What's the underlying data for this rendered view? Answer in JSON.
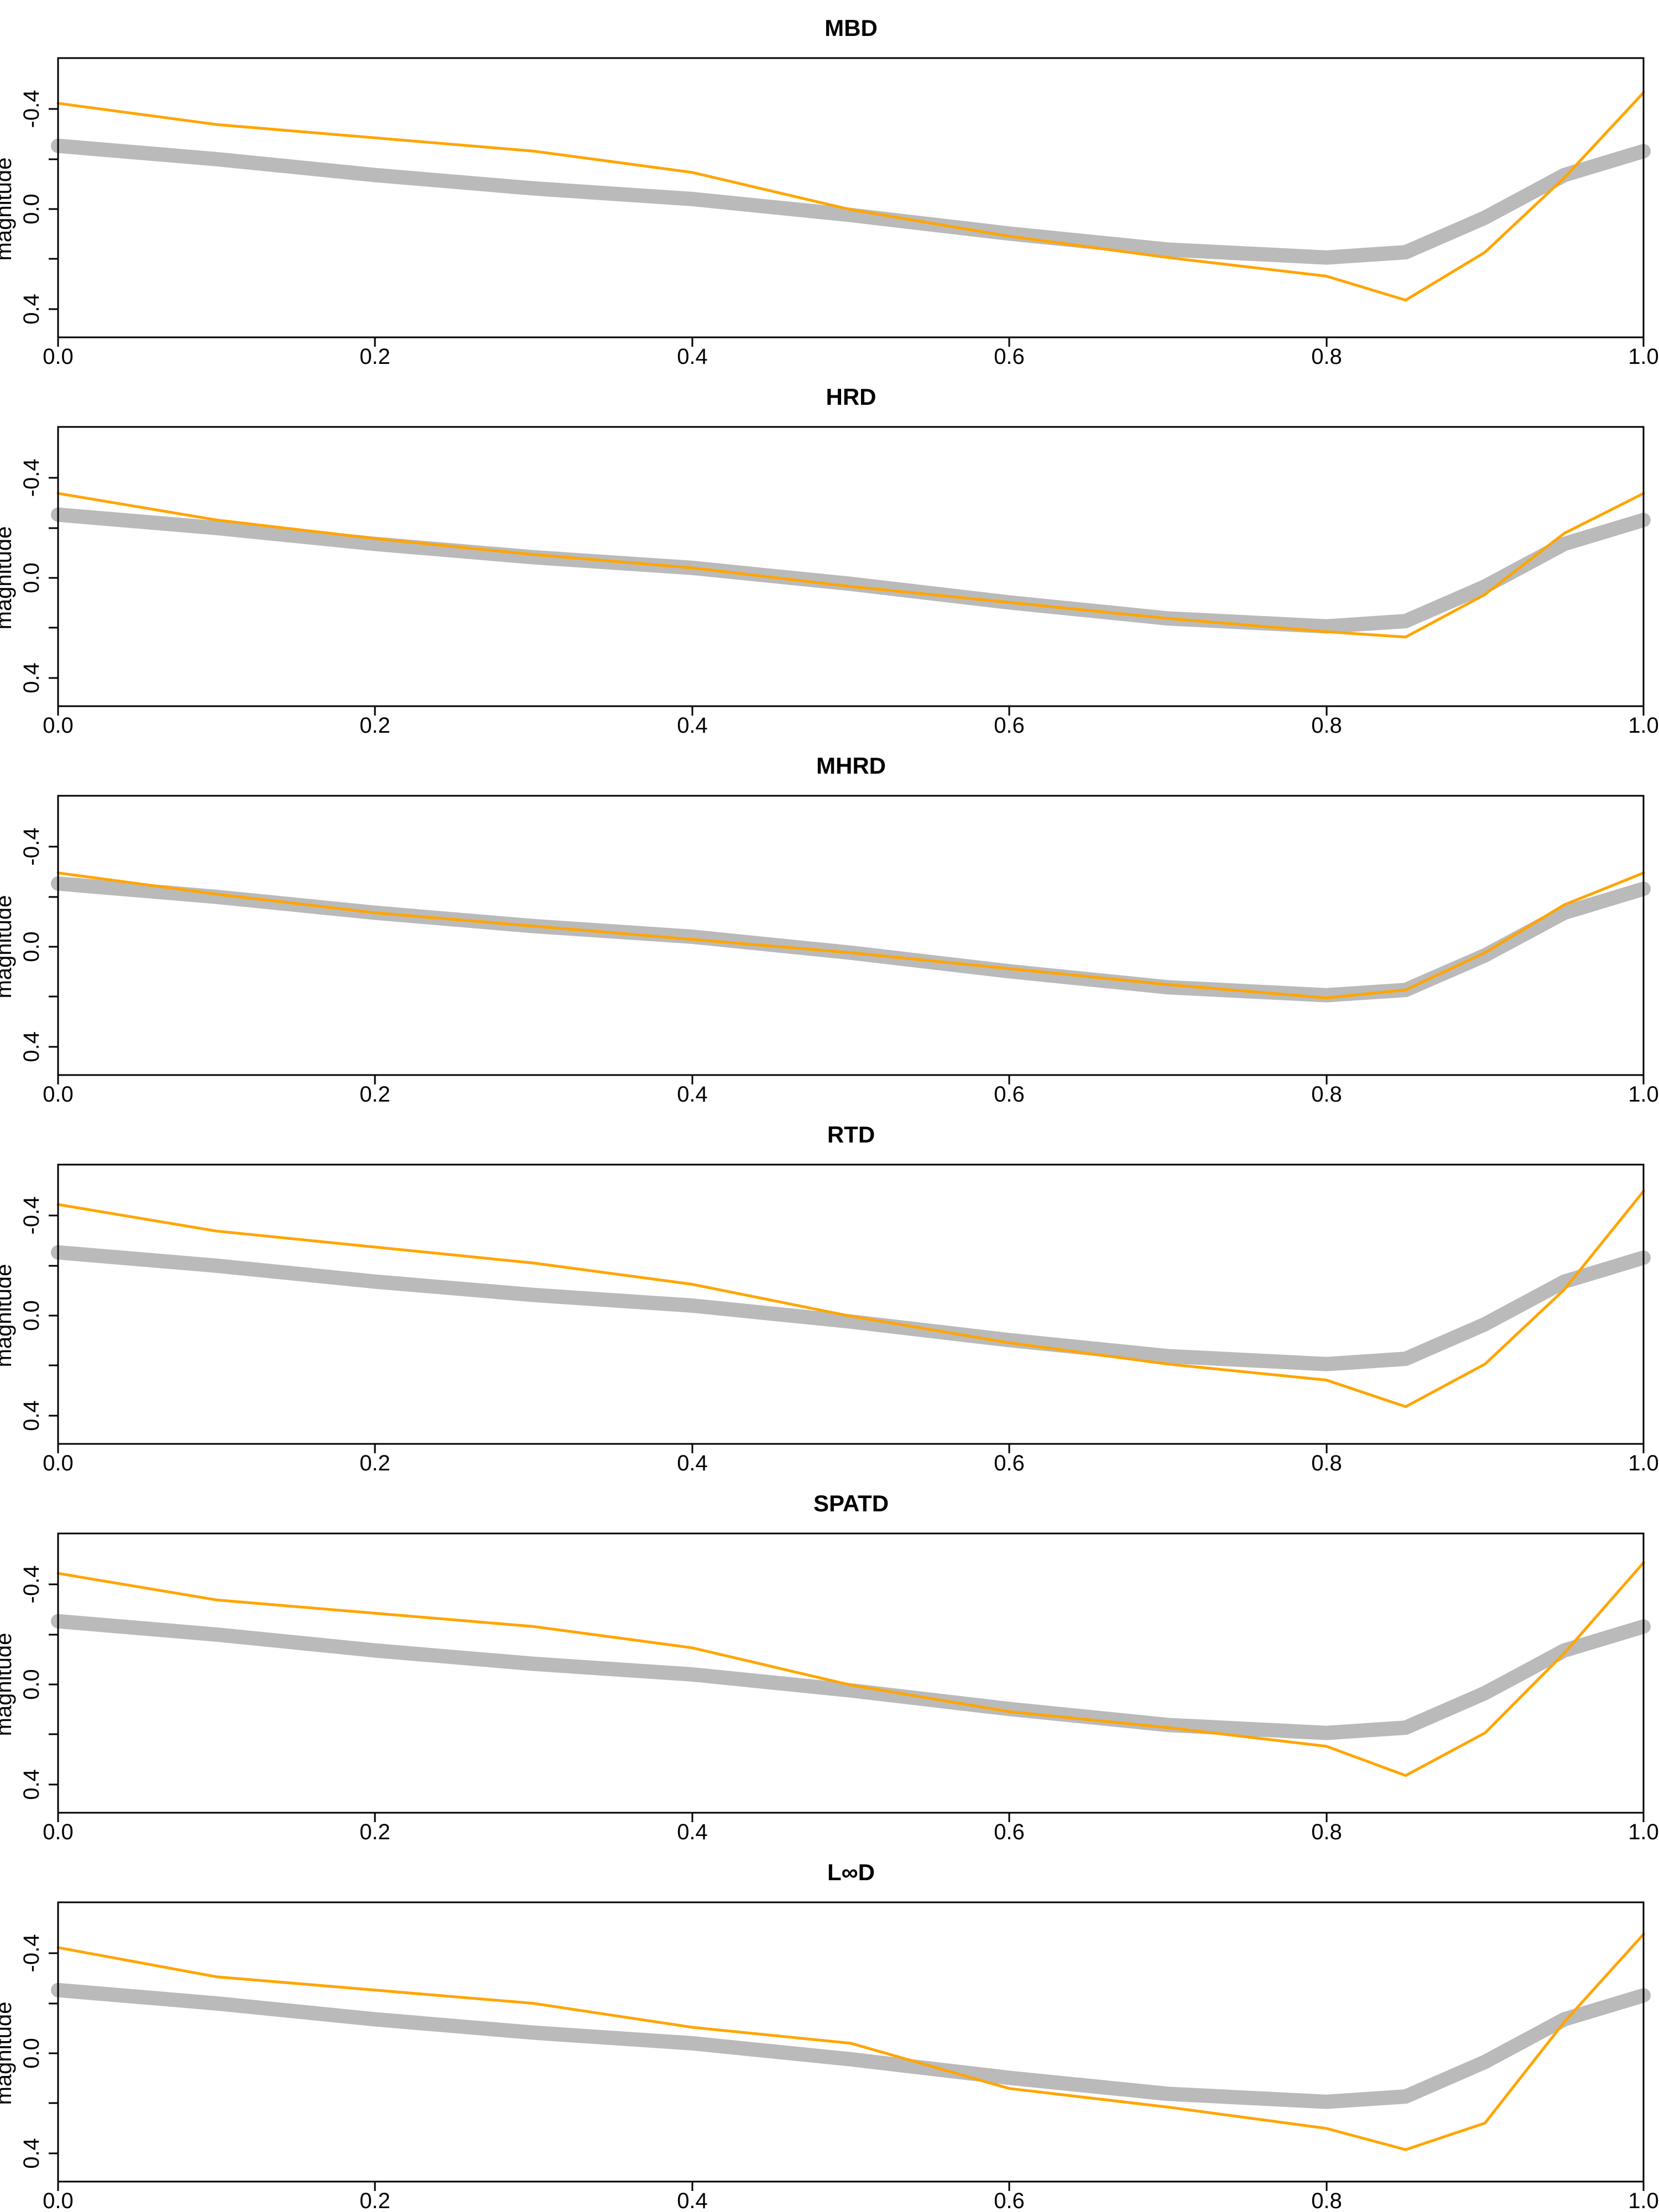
{
  "chart_data": [
    {
      "type": "line",
      "title": "MBD",
      "xlabel": "",
      "ylabel": "magnitude",
      "x_ticks": [
        "0.0",
        "0.2",
        "0.4",
        "0.6",
        "0.8",
        "1.0"
      ],
      "y_ticks": [
        "-0.4",
        "0.0",
        "0.4"
      ],
      "xlim": [
        0,
        1
      ],
      "ylim": [
        -0.55,
        0.5
      ],
      "y_reversed": true,
      "series": [
        {
          "name": "sample curves (gray band)",
          "color": "#3a3a3a",
          "x": [
            0,
            0.1,
            0.2,
            0.3,
            0.4,
            0.5,
            0.6,
            0.7,
            0.8,
            0.85,
            0.9,
            0.95,
            1.0
          ],
          "values": [
            -0.22,
            -0.17,
            -0.11,
            -0.06,
            -0.02,
            0.04,
            0.11,
            0.17,
            0.2,
            0.18,
            0.05,
            -0.11,
            -0.2
          ]
        },
        {
          "name": "highlighted curves (orange)",
          "color": "#FFA500",
          "x": [
            0,
            0.1,
            0.2,
            0.3,
            0.4,
            0.5,
            0.6,
            0.7,
            0.8,
            0.85,
            0.9,
            0.95,
            1.0
          ],
          "values": [
            -0.38,
            -0.3,
            -0.25,
            -0.2,
            -0.12,
            0.02,
            0.12,
            0.2,
            0.27,
            0.36,
            0.18,
            -0.1,
            -0.42
          ]
        }
      ]
    },
    {
      "type": "line",
      "title": "HRD",
      "xlabel": "",
      "ylabel": "magnitude",
      "x_ticks": [
        "0.0",
        "0.2",
        "0.4",
        "0.6",
        "0.8",
        "1.0"
      ],
      "y_ticks": [
        "-0.4",
        "0.0",
        "0.4"
      ],
      "xlim": [
        0,
        1
      ],
      "ylim": [
        -0.55,
        0.5
      ],
      "y_reversed": true,
      "series": [
        {
          "name": "sample curves (gray band)",
          "color": "#3a3a3a",
          "x": [
            0,
            0.1,
            0.2,
            0.3,
            0.4,
            0.5,
            0.6,
            0.7,
            0.8,
            0.85,
            0.9,
            0.95,
            1.0
          ],
          "values": [
            -0.22,
            -0.17,
            -0.11,
            -0.06,
            -0.02,
            0.04,
            0.11,
            0.17,
            0.2,
            0.18,
            0.05,
            -0.11,
            -0.2
          ]
        },
        {
          "name": "highlighted curves (orange)",
          "color": "#FFA500",
          "x": [
            0,
            0.1,
            0.2,
            0.3,
            0.4,
            0.5,
            0.6,
            0.7,
            0.8,
            0.85,
            0.9,
            0.95,
            1.0
          ],
          "values": [
            -0.3,
            -0.2,
            -0.13,
            -0.07,
            -0.02,
            0.05,
            0.11,
            0.17,
            0.22,
            0.24,
            0.08,
            -0.15,
            -0.3
          ]
        }
      ]
    },
    {
      "type": "line",
      "title": "MHRD",
      "xlabel": "",
      "ylabel": "magnitude",
      "x_ticks": [
        "0.0",
        "0.2",
        "0.4",
        "0.6",
        "0.8",
        "1.0"
      ],
      "y_ticks": [
        "-0.4",
        "0.0",
        "0.4"
      ],
      "xlim": [
        0,
        1
      ],
      "ylim": [
        -0.55,
        0.5
      ],
      "y_reversed": true,
      "series": [
        {
          "name": "sample curves (gray band)",
          "color": "#3a3a3a",
          "x": [
            0,
            0.1,
            0.2,
            0.3,
            0.4,
            0.5,
            0.6,
            0.7,
            0.8,
            0.85,
            0.9,
            0.95,
            1.0
          ],
          "values": [
            -0.22,
            -0.17,
            -0.11,
            -0.06,
            -0.02,
            0.04,
            0.11,
            0.17,
            0.2,
            0.18,
            0.05,
            -0.11,
            -0.2
          ]
        },
        {
          "name": "highlighted curves (orange)",
          "color": "#FFA500",
          "x": [
            0,
            0.1,
            0.2,
            0.3,
            0.4,
            0.5,
            0.6,
            0.7,
            0.8,
            0.85,
            0.9,
            0.95,
            1.0
          ],
          "values": [
            -0.26,
            -0.18,
            -0.11,
            -0.06,
            -0.01,
            0.04,
            0.1,
            0.16,
            0.21,
            0.18,
            0.04,
            -0.14,
            -0.26
          ]
        }
      ]
    },
    {
      "type": "line",
      "title": "RTD",
      "xlabel": "",
      "ylabel": "magnitude",
      "x_ticks": [
        "0.0",
        "0.2",
        "0.4",
        "0.6",
        "0.8",
        "1.0"
      ],
      "y_ticks": [
        "-0.4",
        "0.0",
        "0.4"
      ],
      "xlim": [
        0,
        1
      ],
      "ylim": [
        -0.55,
        0.5
      ],
      "y_reversed": true,
      "series": [
        {
          "name": "sample curves (gray band)",
          "color": "#3a3a3a",
          "x": [
            0,
            0.1,
            0.2,
            0.3,
            0.4,
            0.5,
            0.6,
            0.7,
            0.8,
            0.85,
            0.9,
            0.95,
            1.0
          ],
          "values": [
            -0.22,
            -0.17,
            -0.11,
            -0.06,
            -0.02,
            0.04,
            0.11,
            0.17,
            0.2,
            0.18,
            0.05,
            -0.11,
            -0.2
          ]
        },
        {
          "name": "highlighted curves (orange)",
          "color": "#FFA500",
          "x": [
            0,
            0.1,
            0.2,
            0.3,
            0.4,
            0.5,
            0.6,
            0.7,
            0.8,
            0.85,
            0.9,
            0.95,
            1.0
          ],
          "values": [
            -0.4,
            -0.3,
            -0.24,
            -0.18,
            -0.1,
            0.02,
            0.12,
            0.2,
            0.26,
            0.36,
            0.2,
            -0.08,
            -0.45
          ]
        }
      ]
    },
    {
      "type": "line",
      "title": "SPATD",
      "xlabel": "",
      "ylabel": "magnitude",
      "x_ticks": [
        "0.0",
        "0.2",
        "0.4",
        "0.6",
        "0.8",
        "1.0"
      ],
      "y_ticks": [
        "-0.4",
        "0.0",
        "0.4"
      ],
      "xlim": [
        0,
        1
      ],
      "ylim": [
        -0.55,
        0.5
      ],
      "y_reversed": true,
      "series": [
        {
          "name": "sample curves (gray band)",
          "color": "#3a3a3a",
          "x": [
            0,
            0.1,
            0.2,
            0.3,
            0.4,
            0.5,
            0.6,
            0.7,
            0.8,
            0.85,
            0.9,
            0.95,
            1.0
          ],
          "values": [
            -0.22,
            -0.17,
            -0.11,
            -0.06,
            -0.02,
            0.04,
            0.11,
            0.17,
            0.2,
            0.18,
            0.05,
            -0.11,
            -0.2
          ]
        },
        {
          "name": "highlighted curves (orange)",
          "color": "#FFA500",
          "x": [
            0,
            0.1,
            0.2,
            0.3,
            0.4,
            0.5,
            0.6,
            0.7,
            0.8,
            0.85,
            0.9,
            0.95,
            1.0
          ],
          "values": [
            -0.4,
            -0.3,
            -0.25,
            -0.2,
            -0.12,
            0.02,
            0.12,
            0.18,
            0.25,
            0.36,
            0.2,
            -0.1,
            -0.44
          ]
        }
      ]
    },
    {
      "type": "line",
      "title": "L∞D",
      "xlabel": "",
      "ylabel": "magnitude",
      "x_ticks": [
        "0.0",
        "0.2",
        "0.4",
        "0.6",
        "0.8",
        "1.0"
      ],
      "y_ticks": [
        "-0.4",
        "0.0",
        "0.4"
      ],
      "xlim": [
        0,
        1
      ],
      "ylim": [
        -0.55,
        0.5
      ],
      "y_reversed": true,
      "series": [
        {
          "name": "sample curves (gray band)",
          "color": "#3a3a3a",
          "x": [
            0,
            0.1,
            0.2,
            0.3,
            0.4,
            0.5,
            0.6,
            0.7,
            0.8,
            0.85,
            0.9,
            0.95,
            1.0
          ],
          "values": [
            -0.22,
            -0.17,
            -0.11,
            -0.06,
            -0.02,
            0.04,
            0.11,
            0.17,
            0.2,
            0.18,
            0.05,
            -0.11,
            -0.2
          ]
        },
        {
          "name": "highlighted curves (orange)",
          "color": "#FFA500",
          "x": [
            0,
            0.1,
            0.2,
            0.3,
            0.4,
            0.5,
            0.6,
            0.7,
            0.8,
            0.85,
            0.9,
            0.95,
            1.0
          ],
          "values": [
            -0.38,
            -0.27,
            -0.22,
            -0.17,
            -0.08,
            -0.02,
            0.15,
            0.22,
            0.3,
            0.38,
            0.28,
            -0.1,
            -0.43
          ]
        }
      ]
    }
  ]
}
